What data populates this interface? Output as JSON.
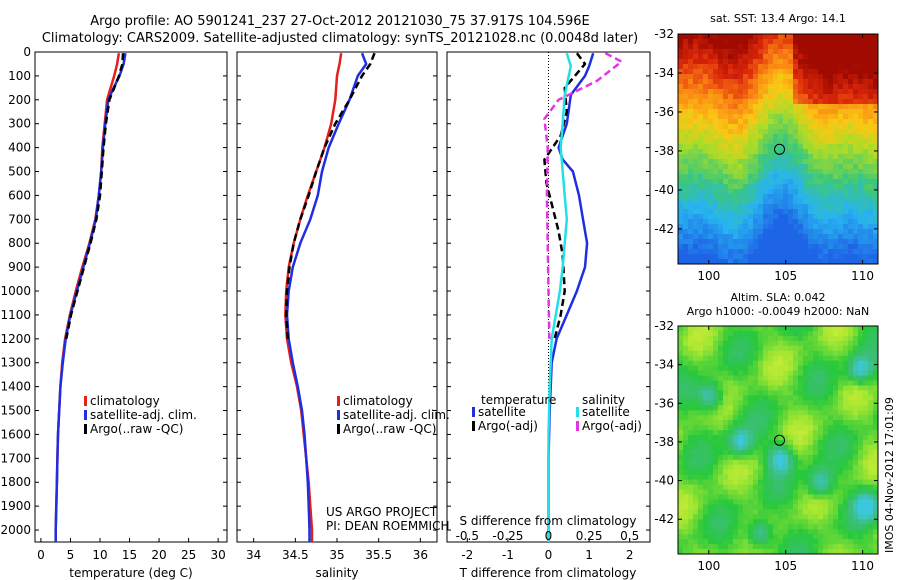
{
  "header": {
    "line1": "Argo profile: AO 5901241_237 27-Oct-2012 20121030_75 37.917S 104.596E",
    "line2": "Climatology: CARS2009. Satellite-adjusted climatology: synTS_20121028.nc (0.0048d later)"
  },
  "project": {
    "line1": "US ARGO PROJECT",
    "line2": "PI: DEAN ROEMMICH"
  },
  "side_stamp": "IMOS 04-Nov-2012 17:01:09",
  "colors": {
    "clim": "#e3201b",
    "sat": "#1f2ee0",
    "argo": "#000000",
    "sat_cyan": "#22e0e6",
    "argo_mag": "#e335e3"
  },
  "chart_data": [
    {
      "type": "line",
      "ylim": [
        2050,
        0
      ],
      "yticks": [
        "0",
        "100",
        "200",
        "300",
        "400",
        "500",
        "600",
        "700",
        "800",
        "900",
        "1000",
        "1100",
        "1200",
        "1300",
        "1400",
        "1500",
        "1600",
        "1700",
        "1800",
        "1900",
        "2000"
      ],
      "xlim": [
        -1,
        31.5
      ],
      "xticks": [
        "0",
        "5",
        "10",
        "15",
        "20",
        "25",
        "30"
      ],
      "xlabel": "temperature (deg C)",
      "legend": [
        "climatology",
        "satellite-adj. clim.",
        "Argo(..raw -QC)"
      ],
      "series": [
        {
          "values": [
            [
              13.2,
              5
            ],
            [
              12.9,
              50
            ],
            [
              12.4,
              100
            ],
            [
              11.8,
              150
            ],
            [
              11.2,
              200
            ],
            [
              10.8,
              300
            ],
            [
              10.4,
              400
            ],
            [
              10.2,
              500
            ],
            [
              9.8,
              600
            ],
            [
              9.2,
              700
            ],
            [
              8.2,
              800
            ],
            [
              7.0,
              900
            ],
            [
              5.9,
              1000
            ],
            [
              4.9,
              1100
            ],
            [
              4.1,
              1200
            ],
            [
              3.6,
              1300
            ],
            [
              3.3,
              1400
            ],
            [
              3.1,
              1500
            ],
            [
              2.9,
              1600
            ],
            [
              2.8,
              1700
            ],
            [
              2.7,
              1800
            ],
            [
              2.6,
              1900
            ],
            [
              2.5,
              2000
            ],
            [
              2.5,
              2050
            ]
          ]
        },
        {
          "values": [
            [
              14.3,
              5
            ],
            [
              14.0,
              50
            ],
            [
              13.3,
              100
            ],
            [
              12.3,
              150
            ],
            [
              11.4,
              200
            ],
            [
              10.9,
              300
            ],
            [
              10.5,
              400
            ],
            [
              10.2,
              500
            ],
            [
              9.8,
              600
            ],
            [
              9.3,
              700
            ],
            [
              8.3,
              800
            ],
            [
              7.2,
              900
            ],
            [
              6.1,
              1000
            ],
            [
              5.0,
              1100
            ],
            [
              4.2,
              1200
            ],
            [
              3.7,
              1300
            ],
            [
              3.3,
              1400
            ],
            [
              3.1,
              1500
            ],
            [
              2.9,
              1600
            ],
            [
              2.8,
              1700
            ],
            [
              2.7,
              1800
            ],
            [
              2.6,
              1900
            ],
            [
              2.5,
              2000
            ],
            [
              2.5,
              2050
            ]
          ]
        },
        {
          "values": [
            [
              13.9,
              5
            ],
            [
              13.8,
              50
            ],
            [
              13.2,
              100
            ],
            [
              12.4,
              150
            ],
            [
              11.6,
              200
            ],
            [
              11.0,
              300
            ],
            [
              10.6,
              400
            ],
            [
              10.3,
              500
            ],
            [
              10.0,
              600
            ],
            [
              9.4,
              700
            ],
            [
              8.4,
              800
            ],
            [
              7.3,
              900
            ],
            [
              6.2,
              1000
            ],
            [
              5.1,
              1100
            ],
            [
              4.3,
              1200
            ]
          ]
        }
      ]
    },
    {
      "type": "line",
      "ylim": [
        2050,
        0
      ],
      "xlim": [
        33.8,
        36.2
      ],
      "xticks": [
        "34",
        "34.5",
        "35",
        "35.5",
        "36"
      ],
      "xlabel": "salinity",
      "legend": [
        "climatology",
        "satellite-adj. clim.",
        "Argo(..raw -QC)"
      ],
      "series": [
        {
          "values": [
            [
              35.05,
              5
            ],
            [
              35.03,
              50
            ],
            [
              35.0,
              100
            ],
            [
              34.98,
              200
            ],
            [
              34.93,
              300
            ],
            [
              34.85,
              400
            ],
            [
              34.75,
              500
            ],
            [
              34.65,
              600
            ],
            [
              34.56,
              700
            ],
            [
              34.48,
              800
            ],
            [
              34.42,
              900
            ],
            [
              34.39,
              1000
            ],
            [
              34.38,
              1100
            ],
            [
              34.4,
              1200
            ],
            [
              34.45,
              1300
            ],
            [
              34.52,
              1400
            ],
            [
              34.57,
              1500
            ],
            [
              34.6,
              1600
            ],
            [
              34.63,
              1700
            ],
            [
              34.66,
              1800
            ],
            [
              34.68,
              1900
            ],
            [
              34.7,
              2000
            ],
            [
              34.7,
              2050
            ]
          ]
        },
        {
          "values": [
            [
              35.3,
              5
            ],
            [
              35.35,
              50
            ],
            [
              35.25,
              100
            ],
            [
              35.15,
              200
            ],
            [
              35.02,
              300
            ],
            [
              34.9,
              400
            ],
            [
              34.82,
              500
            ],
            [
              34.77,
              600
            ],
            [
              34.68,
              700
            ],
            [
              34.56,
              800
            ],
            [
              34.47,
              900
            ],
            [
              34.42,
              1000
            ],
            [
              34.4,
              1100
            ],
            [
              34.42,
              1200
            ],
            [
              34.47,
              1300
            ],
            [
              34.53,
              1400
            ],
            [
              34.58,
              1500
            ],
            [
              34.61,
              1600
            ],
            [
              34.63,
              1700
            ],
            [
              34.65,
              1800
            ],
            [
              34.66,
              1900
            ],
            [
              34.67,
              2000
            ],
            [
              34.67,
              2050
            ]
          ]
        },
        {
          "values": [
            [
              35.45,
              5
            ],
            [
              35.4,
              50
            ],
            [
              35.3,
              100
            ],
            [
              35.15,
              200
            ],
            [
              34.98,
              300
            ],
            [
              34.85,
              400
            ],
            [
              34.75,
              500
            ],
            [
              34.66,
              600
            ],
            [
              34.56,
              700
            ],
            [
              34.48,
              800
            ],
            [
              34.43,
              900
            ],
            [
              34.4,
              1000
            ],
            [
              34.39,
              1100
            ],
            [
              34.41,
              1200
            ]
          ]
        }
      ]
    },
    {
      "type": "line",
      "ylim": [
        2050,
        0
      ],
      "xlim": [
        -2.5,
        2.5
      ],
      "xticks": [
        "-2",
        "-1",
        "0",
        "1",
        "2"
      ],
      "xlabel": "T difference from climatology",
      "sticks": [
        "-0.5",
        "-0.25",
        "0",
        "0.25",
        "0.5"
      ],
      "stitle": "S difference from climatology",
      "legend_t_title": "temperature",
      "legend_s_title": "salinity",
      "legend": [
        "satellite",
        "Argo(-adj)",
        "satellite",
        "Argo(-adj)"
      ],
      "series": [
        {
          "values": [
            [
              1.1,
              5
            ],
            [
              1.0,
              60
            ],
            [
              0.9,
              100
            ],
            [
              0.55,
              180
            ],
            [
              0.45,
              300
            ],
            [
              0.25,
              400
            ],
            [
              0.35,
              450
            ],
            [
              0.6,
              500
            ],
            [
              0.75,
              600
            ],
            [
              0.85,
              700
            ],
            [
              0.95,
              800
            ],
            [
              0.9,
              900
            ],
            [
              0.7,
              1000
            ],
            [
              0.45,
              1100
            ],
            [
              0.2,
              1200
            ],
            [
              0.08,
              1300
            ],
            [
              0.03,
              1500
            ],
            [
              0.0,
              1700
            ],
            [
              0.0,
              2050
            ]
          ]
        },
        {
          "values": [
            [
              0.7,
              5
            ],
            [
              0.9,
              50
            ],
            [
              0.4,
              150
            ],
            [
              0.45,
              250
            ],
            [
              0.3,
              350
            ],
            [
              -0.1,
              450
            ],
            [
              -0.05,
              550
            ],
            [
              0.1,
              650
            ],
            [
              0.25,
              750
            ],
            [
              0.35,
              850
            ],
            [
              0.4,
              1000
            ],
            [
              0.3,
              1100
            ],
            [
              0.15,
              1200
            ]
          ]
        },
        {
          "values": [
            [
              0.45,
              5
            ],
            [
              0.55,
              60
            ],
            [
              0.4,
              180
            ],
            [
              0.35,
              300
            ],
            [
              0.3,
              400
            ],
            [
              0.35,
              500
            ],
            [
              0.4,
              600
            ],
            [
              0.45,
              700
            ],
            [
              0.4,
              800
            ],
            [
              0.35,
              900
            ],
            [
              0.28,
              1000
            ],
            [
              0.18,
              1100
            ],
            [
              0.08,
              1200
            ],
            [
              0.03,
              1400
            ],
            [
              0.0,
              1600
            ],
            [
              0.0,
              2050
            ]
          ]
        },
        {
          "values": [
            [
              1.4,
              5
            ],
            [
              1.8,
              40
            ],
            [
              1.2,
              120
            ],
            [
              0.25,
              200
            ],
            [
              -0.1,
              280
            ],
            [
              -0.02,
              400
            ],
            [
              -0.04,
              600
            ],
            [
              -0.02,
              800
            ],
            [
              0.0,
              1000
            ],
            [
              0.02,
              1200
            ]
          ]
        }
      ]
    },
    {
      "type": "heatmap",
      "title": "sat. SST: 13.4  Argo: 14.1",
      "xticks": [
        "100",
        "105",
        "110"
      ],
      "yticks": [
        "-32",
        "-34",
        "-36",
        "-38",
        "-40",
        "-42"
      ],
      "xlim": [
        98,
        111
      ],
      "ylim": [
        -43.8,
        -32
      ]
    },
    {
      "type": "heatmap",
      "title": "Altim. SLA: 0.042",
      "subtitle": "Argo h1000: -0.0049 h2000: NaN",
      "xticks": [
        "100",
        "105",
        "110"
      ],
      "yticks": [
        "-32",
        "-34",
        "-36",
        "-38",
        "-40",
        "-42"
      ],
      "xlim": [
        98,
        111
      ],
      "ylim": [
        -43.8,
        -32
      ]
    }
  ]
}
